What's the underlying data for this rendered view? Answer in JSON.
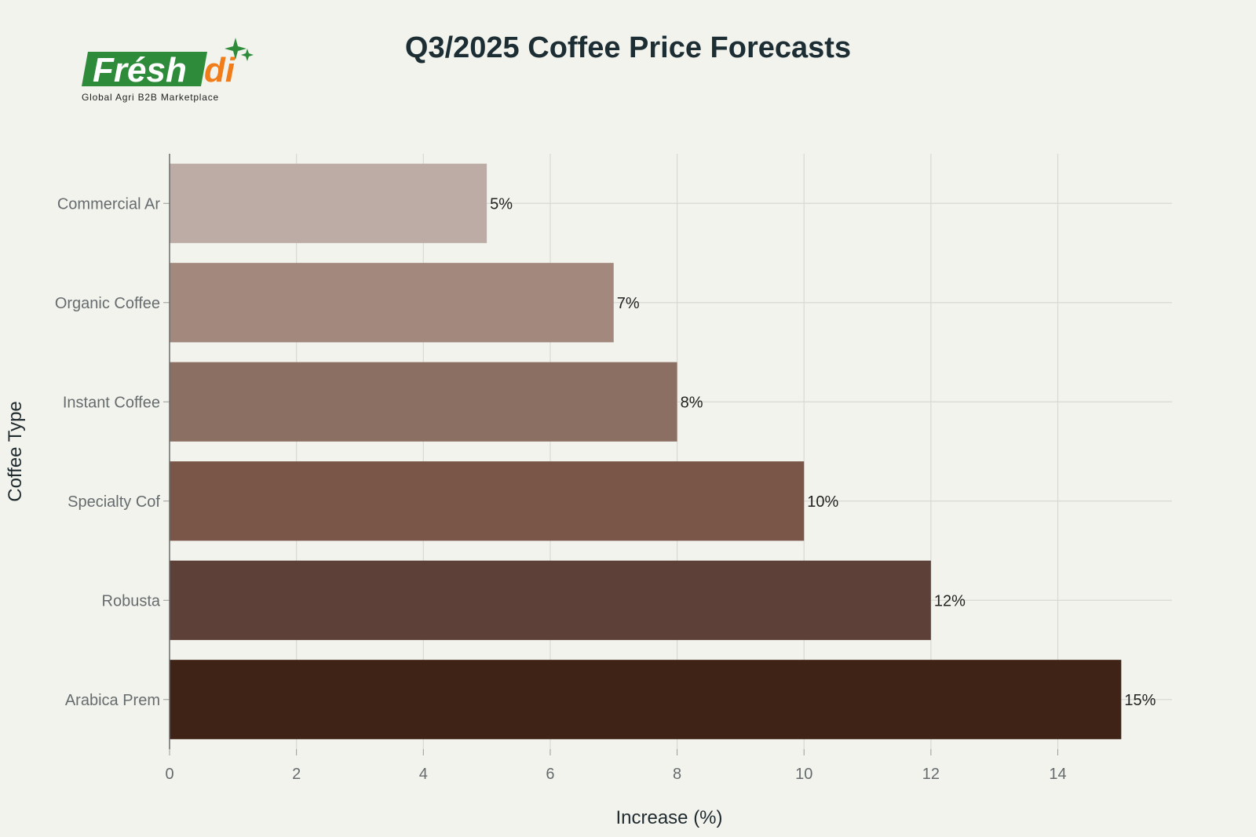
{
  "logo": {
    "name": "Freshdi",
    "tagline": "Global Agri B2B Marketplace",
    "green": "#2e8b3a",
    "orange": "#f07d1a"
  },
  "chart_data": {
    "type": "bar",
    "orientation": "horizontal",
    "title": "Q3/2025 Coffee Price Forecasts",
    "xlabel": "Increase (%)",
    "ylabel": "Coffee Type",
    "categories": [
      "Commercial Ar",
      "Organic Coffee",
      "Instant Coffee",
      "Specialty Cof",
      "Robusta",
      "Arabica Prem"
    ],
    "values": [
      5,
      7,
      8,
      10,
      12,
      15
    ],
    "data_labels": [
      "5%",
      "7%",
      "8%",
      "10%",
      "12%",
      "15%"
    ],
    "colors": [
      "#bcaca5",
      "#a2887d",
      "#8c6f63",
      "#7a5648",
      "#5d4037",
      "#3e2316"
    ],
    "xlim": [
      0,
      15.8
    ],
    "xticks": [
      0,
      2,
      4,
      6,
      8,
      10,
      12,
      14
    ],
    "grid": true,
    "legend": "none"
  }
}
